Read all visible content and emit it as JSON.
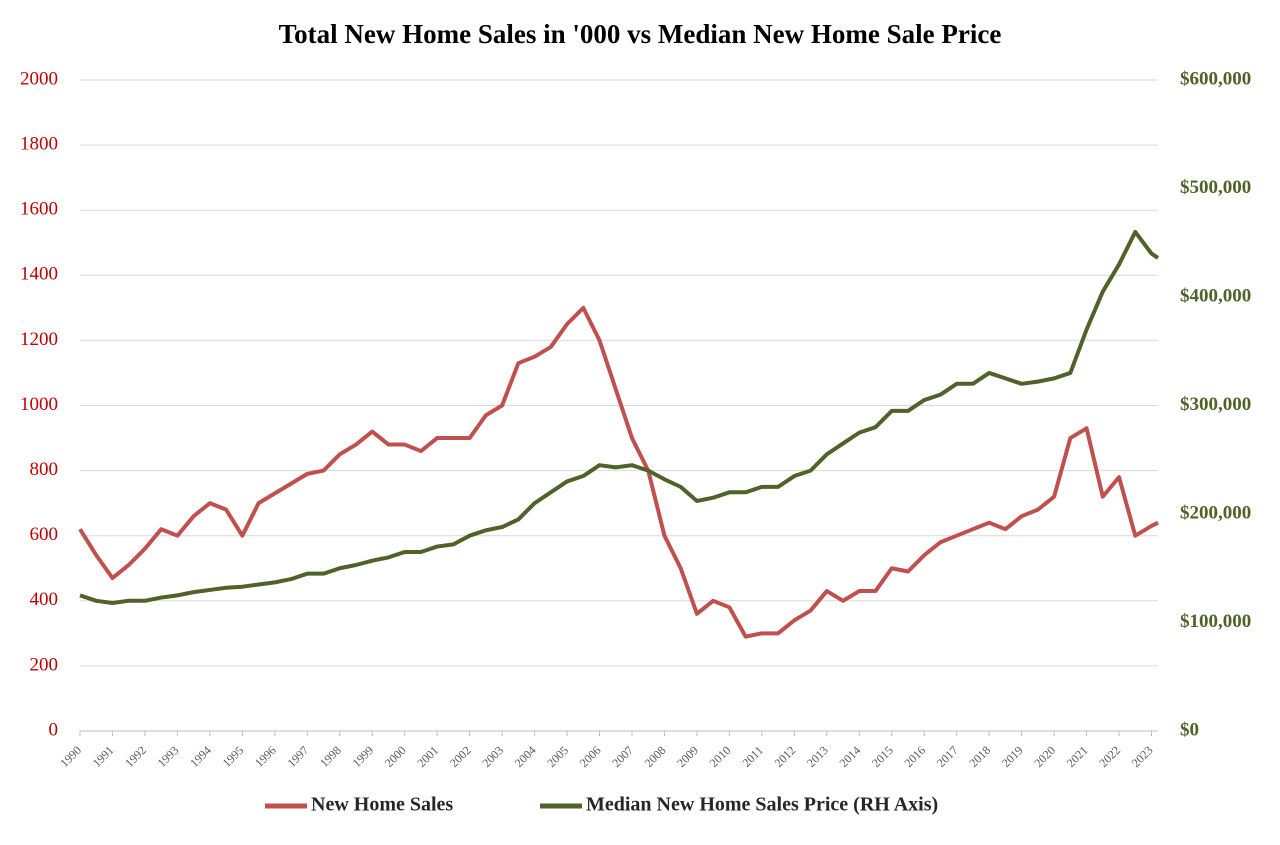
{
  "chart_data": {
    "type": "line",
    "title": "Total New Home Sales in '000 vs Median New Home Sale Price",
    "x": [
      1990,
      1990.5,
      1991,
      1991.5,
      1992,
      1992.5,
      1993,
      1993.5,
      1994,
      1994.5,
      1995,
      1995.5,
      1996,
      1996.5,
      1997,
      1997.5,
      1998,
      1998.5,
      1999,
      1999.5,
      2000,
      2000.5,
      2001,
      2001.5,
      2002,
      2002.5,
      2003,
      2003.5,
      2004,
      2004.5,
      2005,
      2005.5,
      2006,
      2006.5,
      2007,
      2007.5,
      2008,
      2008.5,
      2009,
      2009.5,
      2010,
      2010.5,
      2011,
      2011.5,
      2012,
      2012.5,
      2013,
      2013.5,
      2014,
      2014.5,
      2015,
      2015.5,
      2016,
      2016.5,
      2017,
      2017.5,
      2018,
      2018.5,
      2019,
      2019.5,
      2020,
      2020.5,
      2021,
      2021.5,
      2022,
      2022.5,
      2023,
      2023.2
    ],
    "series": [
      {
        "name": "New Home Sales",
        "color": "#c0504d",
        "axis": "y",
        "values": [
          620,
          540,
          470,
          510,
          560,
          620,
          600,
          660,
          700,
          680,
          600,
          700,
          730,
          760,
          790,
          800,
          850,
          880,
          920,
          880,
          880,
          860,
          900,
          900,
          900,
          970,
          1000,
          1130,
          1150,
          1180,
          1250,
          1300,
          1200,
          1050,
          900,
          800,
          600,
          500,
          360,
          400,
          380,
          290,
          300,
          300,
          340,
          370,
          430,
          400,
          430,
          430,
          500,
          490,
          540,
          580,
          600,
          620,
          640,
          620,
          660,
          680,
          720,
          900,
          930,
          720,
          780,
          600,
          630,
          640
        ]
      },
      {
        "name": "Median New Home Sales Price (RH Axis)",
        "color": "#4f6228",
        "axis": "y2",
        "values": [
          125000,
          120000,
          118000,
          120000,
          120000,
          123000,
          125000,
          128000,
          130000,
          132000,
          133000,
          135000,
          137000,
          140000,
          145000,
          145000,
          150000,
          153000,
          157000,
          160000,
          165000,
          165000,
          170000,
          172000,
          180000,
          185000,
          188000,
          195000,
          210000,
          220000,
          230000,
          235000,
          245000,
          243000,
          245000,
          240000,
          232000,
          225000,
          212000,
          215000,
          220000,
          220000,
          225000,
          225000,
          235000,
          240000,
          255000,
          265000,
          275000,
          280000,
          295000,
          295000,
          305000,
          310000,
          320000,
          320000,
          330000,
          325000,
          320000,
          322000,
          325000,
          330000,
          370000,
          405000,
          430000,
          460000,
          440000,
          436000
        ]
      }
    ],
    "xlim": [
      1990,
      2023.2
    ],
    "xticks": [
      1990,
      1991,
      1992,
      1993,
      1994,
      1995,
      1996,
      1997,
      1998,
      1999,
      2000,
      2001,
      2002,
      2003,
      2004,
      2005,
      2006,
      2007,
      2008,
      2009,
      2010,
      2011,
      2012,
      2013,
      2014,
      2015,
      2016,
      2017,
      2018,
      2019,
      2020,
      2021,
      2022,
      2023
    ],
    "ylim": [
      0,
      2000
    ],
    "yticks": [
      0,
      200,
      400,
      600,
      800,
      1000,
      1200,
      1400,
      1600,
      1800,
      2000
    ],
    "y2lim": [
      0,
      600000
    ],
    "y2ticks": [
      {
        "value": 0,
        "label": "$0"
      },
      {
        "value": 100000,
        "label": "$100,000"
      },
      {
        "value": 200000,
        "label": "$200,000"
      },
      {
        "value": 300000,
        "label": "$300,000"
      },
      {
        "value": 400000,
        "label": "$400,000"
      },
      {
        "value": 500000,
        "label": "$500,000"
      },
      {
        "value": 600000,
        "label": "$600,000"
      }
    ],
    "grid": true,
    "legend": "bottom"
  }
}
